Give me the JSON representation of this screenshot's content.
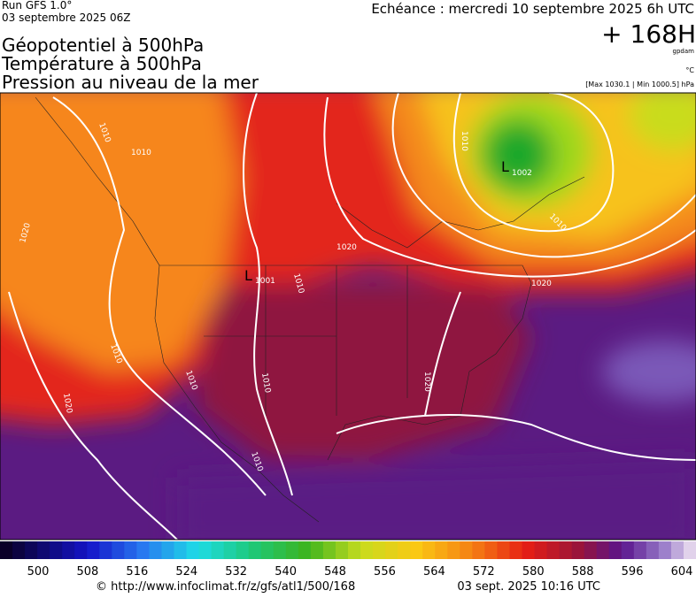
{
  "header": {
    "run": "Run GFS 1.0°",
    "run_date": "03 septembre 2025 06Z",
    "valid": "Echéance : mercredi 10 septembre 2025 6h UTC",
    "lead": "+ 168H",
    "unit": "gpdam",
    "temp_unit": "°C",
    "pressure_range": "[Max 1030.1 | Min 1000.5] hPa",
    "titles": [
      "Géopotentiel à 500hPa",
      "Température à 500hPa",
      "Pression au niveau de la mer"
    ]
  },
  "map": {
    "labels": [
      "1010",
      "1010",
      "1020",
      "1010",
      "1001",
      "1010",
      "1020",
      "1010",
      "1002",
      "1010",
      "1020",
      "1020",
      "1010",
      "1020",
      "1010",
      "1010"
    ],
    "lows": [
      "L",
      "L"
    ]
  },
  "colorbar": {
    "ticks": [
      500,
      508,
      516,
      524,
      532,
      540,
      548,
      556,
      564,
      572,
      580,
      588,
      596,
      604
    ]
  },
  "footer": {
    "source": "© http://www.infoclimat.fr/z/gfs/atl1/500/168",
    "generated": "03 sept. 2025 10:16 UTC"
  }
}
